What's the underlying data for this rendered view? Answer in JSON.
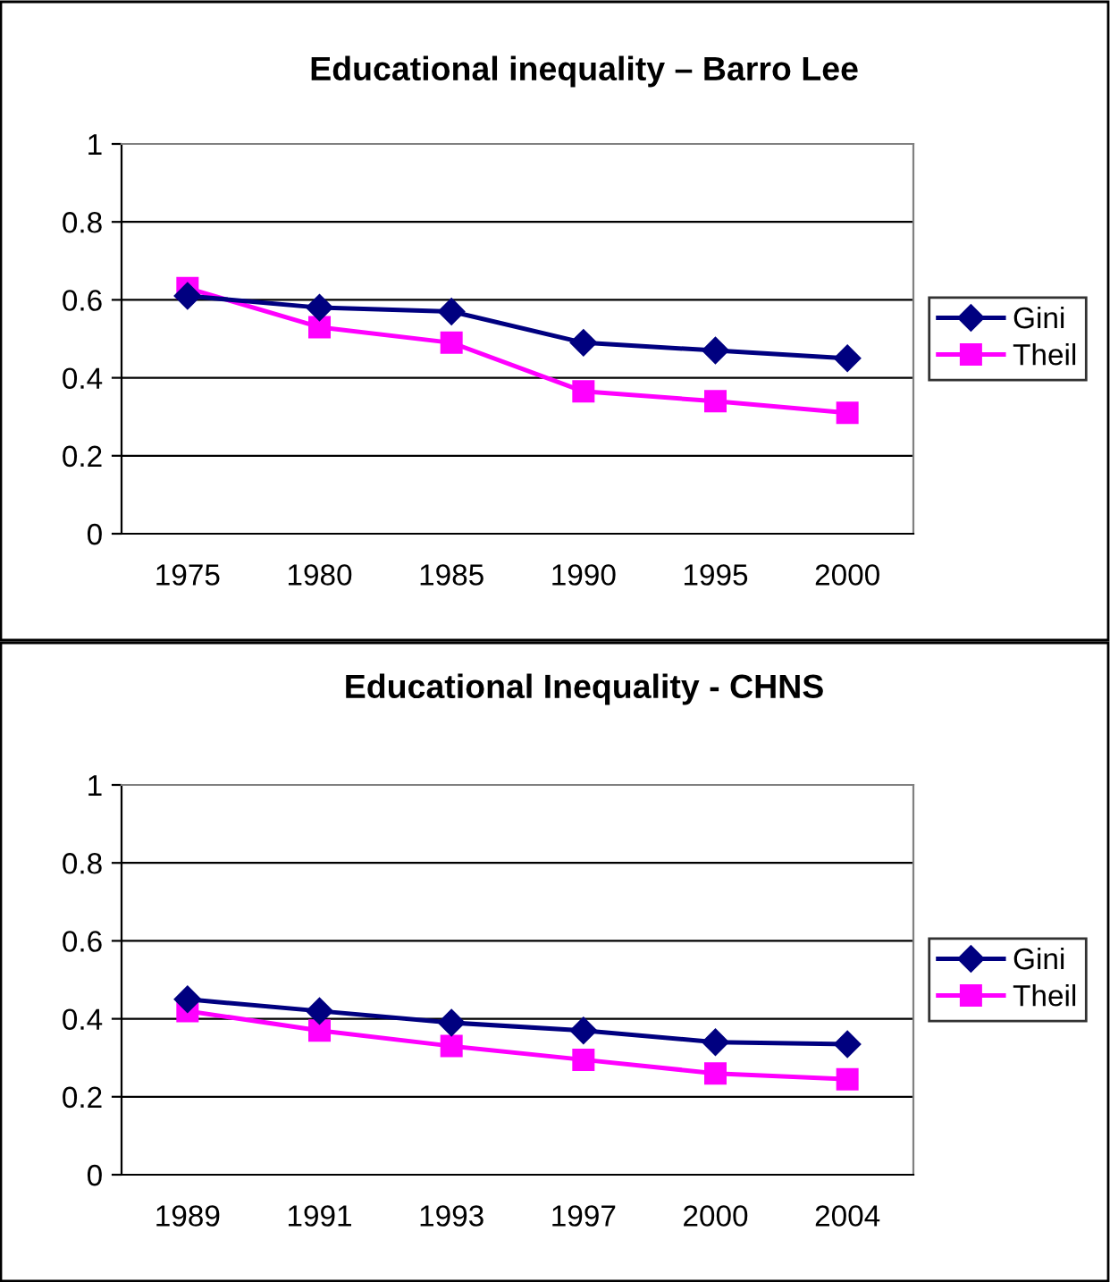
{
  "chart_data": [
    {
      "type": "line",
      "title": "Educational inequality – Barro Lee",
      "categories": [
        "1975",
        "1980",
        "1985",
        "1990",
        "1995",
        "2000"
      ],
      "series": [
        {
          "name": "Gini",
          "color": "#000080",
          "marker": "diamond",
          "values": [
            0.61,
            0.58,
            0.57,
            0.49,
            0.47,
            0.45
          ]
        },
        {
          "name": "Theil",
          "color": "#ff00ff",
          "marker": "square",
          "values": [
            0.63,
            0.53,
            0.49,
            0.365,
            0.34,
            0.31
          ]
        }
      ],
      "ylim": [
        0,
        1
      ],
      "yticks": [
        0,
        0.2,
        0.4,
        0.6,
        0.8,
        1
      ],
      "grid": "y",
      "legend": "right"
    },
    {
      "type": "line",
      "title": "Educational Inequality - CHNS",
      "categories": [
        "1989",
        "1991",
        "1993",
        "1997",
        "2000",
        "2004"
      ],
      "series": [
        {
          "name": "Gini",
          "color": "#000080",
          "marker": "diamond",
          "values": [
            0.45,
            0.42,
            0.39,
            0.37,
            0.34,
            0.335
          ]
        },
        {
          "name": "Theil",
          "color": "#ff00ff",
          "marker": "square",
          "values": [
            0.42,
            0.37,
            0.33,
            0.295,
            0.26,
            0.245
          ]
        }
      ],
      "ylim": [
        0,
        1
      ],
      "yticks": [
        0,
        0.2,
        0.4,
        0.6,
        0.8,
        1
      ],
      "grid": "y",
      "legend": "right"
    }
  ]
}
